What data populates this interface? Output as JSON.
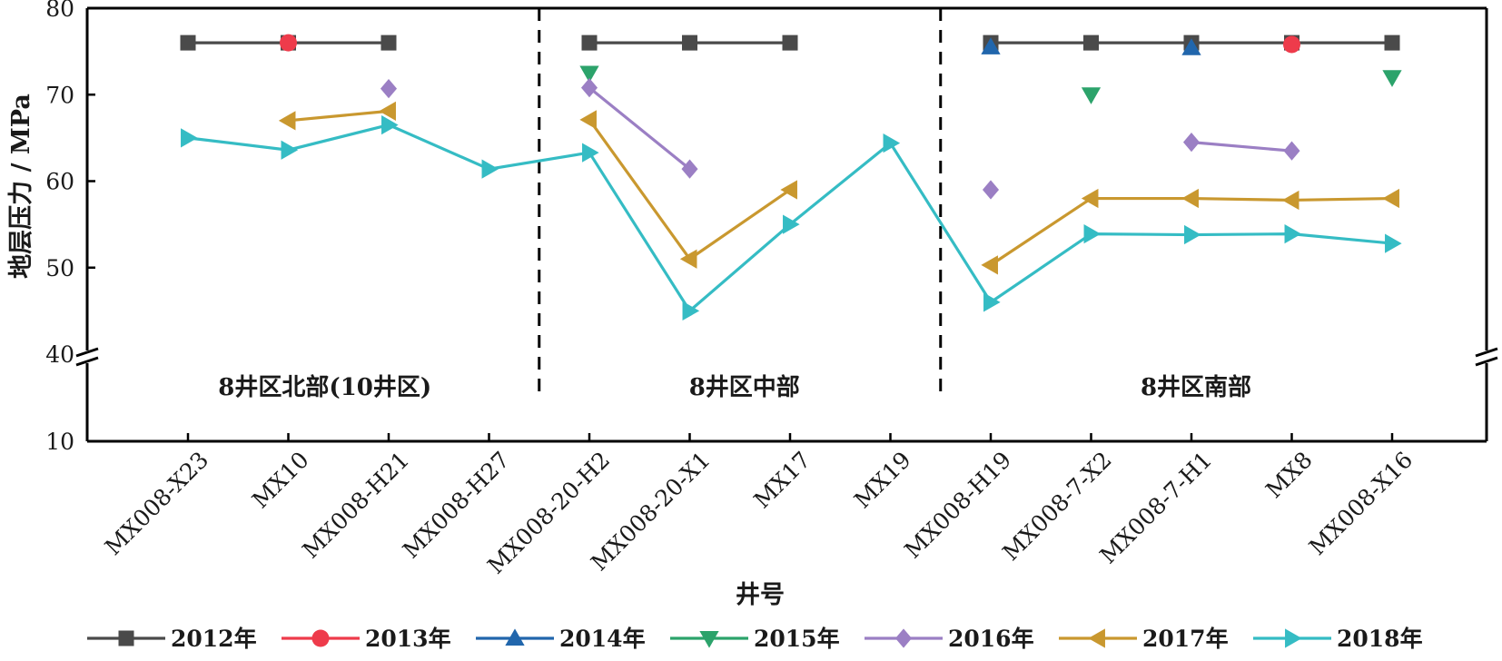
{
  "chart_data": {
    "type": "line",
    "xlabel": "井号",
    "ylabel": "地层压力 / MPa",
    "categories": [
      "MX008-X23",
      "MX10",
      "MX008-H21",
      "MX008-H27",
      "MX008-20-H2",
      "MX008-20-X1",
      "MX17",
      "MX19",
      "MX008-H19",
      "MX008-7-X2",
      "MX008-7-H1",
      "MX8",
      "MX008-X16"
    ],
    "y_axis": {
      "broken": true,
      "lower_ticks": [
        10,
        40
      ],
      "upper_ticks": [
        40,
        50,
        60,
        70,
        80
      ],
      "ylim_upper": [
        40,
        80
      ]
    },
    "grid": false,
    "legend_position": "bottom",
    "regions": [
      {
        "label": "8井区北部(10井区)",
        "from_index": 0,
        "to_index": 3
      },
      {
        "label": "8井区中部",
        "from_index": 4,
        "to_index": 7
      },
      {
        "label": "8井区南部",
        "from_index": 8,
        "to_index": 12
      }
    ],
    "series": [
      {
        "name": "2012年",
        "color": "#4a4a4a",
        "marker": "square",
        "values": [
          76,
          76,
          76,
          null,
          76,
          76,
          76,
          null,
          76,
          76,
          76,
          76,
          76
        ],
        "segments": [
          [
            0,
            2
          ],
          [
            4,
            6
          ],
          [
            8,
            12
          ]
        ]
      },
      {
        "name": "2013年",
        "color": "#ee3b4b",
        "marker": "circle",
        "values": [
          null,
          76,
          null,
          null,
          null,
          null,
          null,
          null,
          null,
          null,
          null,
          75.8,
          null
        ],
        "segments": []
      },
      {
        "name": "2014年",
        "color": "#2166ac",
        "marker": "triangle-up",
        "values": [
          null,
          null,
          null,
          null,
          null,
          null,
          null,
          null,
          75.5,
          null,
          75.4,
          null,
          null
        ],
        "segments": []
      },
      {
        "name": "2015年",
        "color": "#2ca36b",
        "marker": "triangle-down",
        "values": [
          null,
          null,
          null,
          null,
          72.5,
          null,
          null,
          null,
          null,
          70,
          null,
          null,
          72
        ],
        "segments": []
      },
      {
        "name": "2016年",
        "color": "#9b7fc4",
        "marker": "diamond",
        "values": [
          null,
          null,
          70.7,
          null,
          70.8,
          61.4,
          null,
          null,
          59,
          null,
          64.5,
          63.5,
          null
        ],
        "segments": [
          [
            4,
            5
          ],
          [
            10,
            11
          ]
        ]
      },
      {
        "name": "2017年",
        "color": "#c9982f",
        "marker": "triangle-left",
        "values": [
          null,
          67,
          68.1,
          null,
          67.1,
          51,
          59,
          null,
          50.3,
          58,
          58,
          57.8,
          58
        ],
        "segments": [
          [
            1,
            2
          ],
          [
            4,
            6
          ],
          [
            8,
            12
          ]
        ]
      },
      {
        "name": "2018年",
        "color": "#35bcc4",
        "marker": "triangle-right",
        "values": [
          65,
          63.6,
          66.5,
          61.4,
          63.3,
          45,
          55,
          64.4,
          46,
          53.9,
          53.8,
          53.9,
          52.8
        ],
        "segments": [
          [
            0,
            12
          ]
        ]
      }
    ]
  }
}
